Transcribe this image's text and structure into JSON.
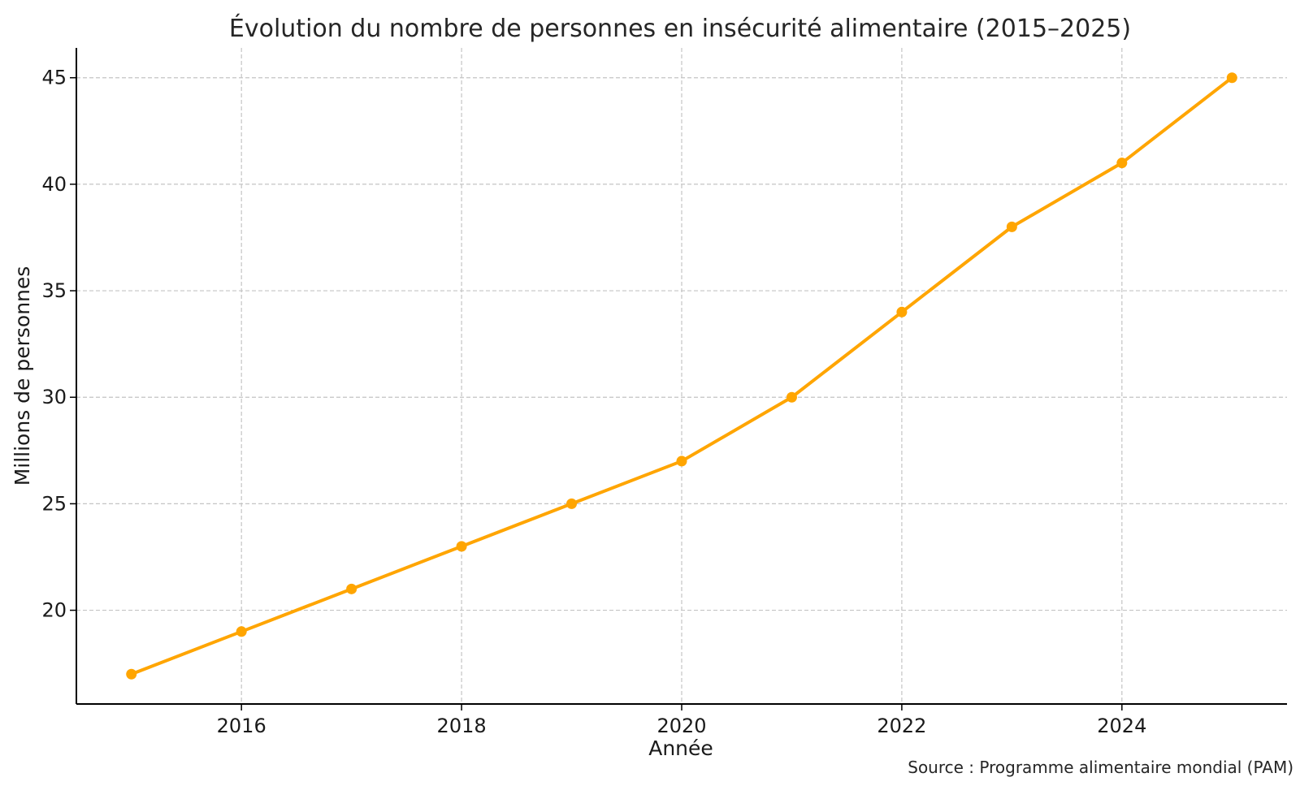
{
  "chart_data": {
    "type": "line",
    "title": "Évolution du nombre de personnes en insécurité alimentaire (2015–2025)",
    "xlabel": "Année",
    "ylabel": "Millions de personnes",
    "x": [
      2015,
      2016,
      2017,
      2018,
      2019,
      2020,
      2021,
      2022,
      2023,
      2024,
      2025
    ],
    "series": [
      {
        "values": [
          17,
          19,
          21,
          23,
          25,
          27,
          30,
          34,
          38,
          41,
          45
        ],
        "color": "#ffa500"
      }
    ],
    "xlim": [
      2014.5,
      2025.5
    ],
    "ylim": [
      15.6,
      46.4
    ],
    "xticks": [
      "2016",
      "2018",
      "2020",
      "2022",
      "2024"
    ],
    "yticks": [
      "20",
      "25",
      "30",
      "35",
      "40",
      "45"
    ],
    "grid": true,
    "legend": "none",
    "source": "Source : Programme alimentaire mondial (PAM)"
  }
}
